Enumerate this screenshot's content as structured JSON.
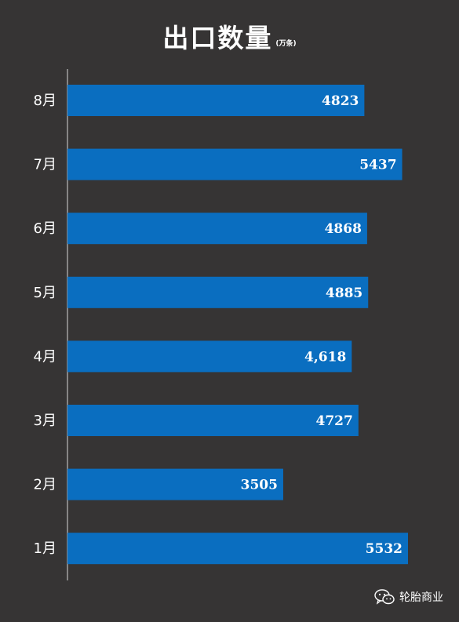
{
  "chart_data": {
    "type": "bar",
    "orientation": "horizontal",
    "title": "出口数量",
    "unit": "(万条)",
    "categories": [
      "8月",
      "7月",
      "6月",
      "5月",
      "4月",
      "3月",
      "2月",
      "1月"
    ],
    "values": [
      4823,
      5437,
      4868,
      4885,
      4618,
      4727,
      3505,
      5532
    ],
    "value_labels": [
      "4823",
      "5437",
      "4868",
      "4885",
      "4,618",
      "4727",
      "3505",
      "5532"
    ],
    "xlim": [
      0,
      5532
    ],
    "bar_color": "#0a6ec0",
    "background_color": "#363434",
    "grid": false,
    "legend": "none"
  },
  "watermark": {
    "text": "轮胎商业",
    "icon": "wechat-icon"
  }
}
